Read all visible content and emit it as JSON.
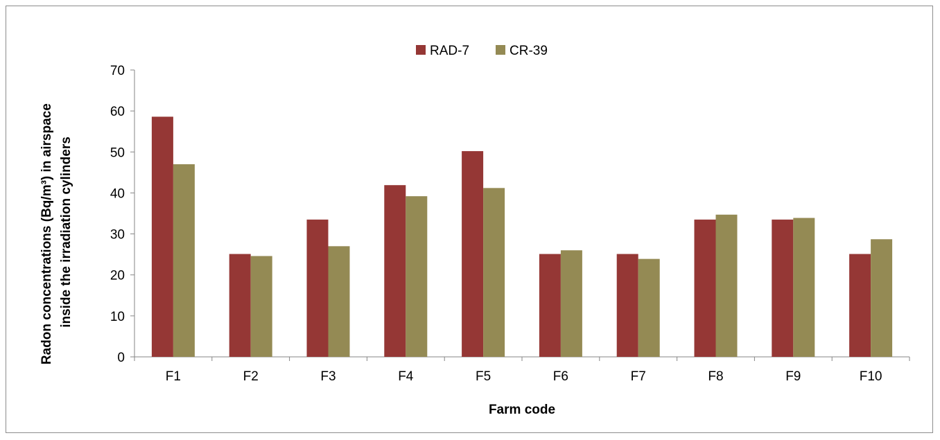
{
  "chart_data": {
    "type": "bar",
    "title": "",
    "xlabel": "Farm code",
    "ylabel_lines": [
      "Radon concentrations (Bq/m³) in airspace",
      "inside the irradiation cylinders"
    ],
    "categories": [
      "F1",
      "F2",
      "F3",
      "F4",
      "F5",
      "F6",
      "F7",
      "F8",
      "F9",
      "F10"
    ],
    "series": [
      {
        "name": "RAD-7",
        "color": "#953735",
        "values": [
          58.6,
          25.1,
          33.5,
          41.9,
          50.2,
          25.1,
          25.1,
          33.5,
          33.5,
          25.1
        ]
      },
      {
        "name": "CR-39",
        "color": "#948A54",
        "values": [
          47.0,
          24.6,
          27.0,
          39.2,
          41.2,
          26.0,
          23.9,
          34.7,
          33.9,
          28.7
        ]
      }
    ],
    "ylim": [
      0,
      70
    ],
    "yticks": [
      "0",
      "10",
      "20",
      "30",
      "40",
      "50",
      "60",
      "70"
    ],
    "grid": false,
    "legend_position": "top-center"
  }
}
